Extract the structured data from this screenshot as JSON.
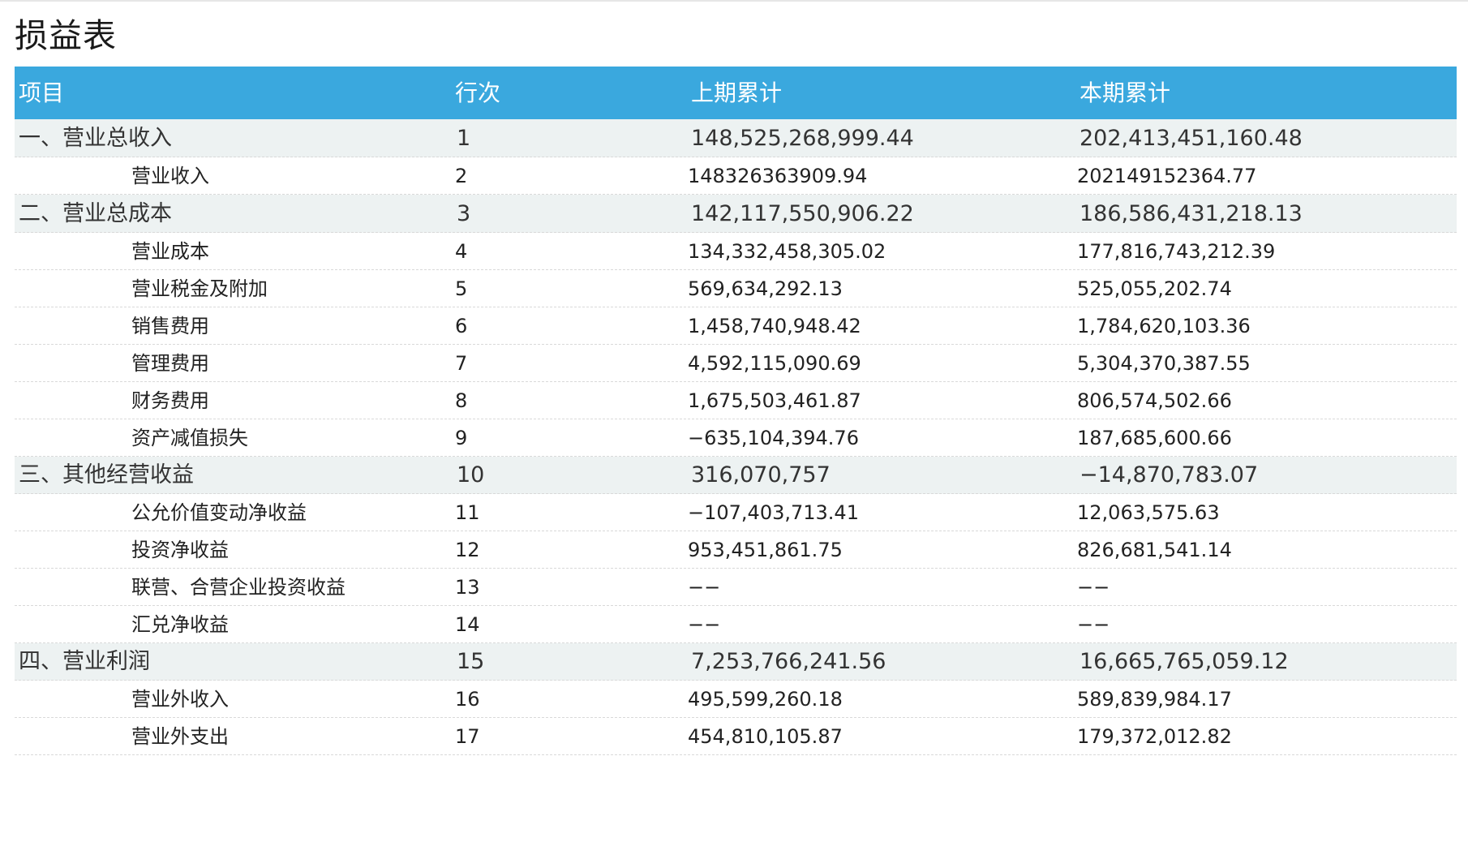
{
  "page": {
    "title": "损益表"
  },
  "table": {
    "headers": [
      "项目",
      "行次",
      "上期累计",
      "本期累计"
    ],
    "rows": [
      {
        "type": "group",
        "name": "一、营业总收入",
        "line": "1",
        "prev": "148,525,268,999.44",
        "curr": "202,413,451,160.48"
      },
      {
        "type": "item",
        "name": "营业收入",
        "line": "2",
        "prev": "148326363909.94",
        "curr": "202149152364.77"
      },
      {
        "type": "group",
        "name": "二、营业总成本",
        "line": "3",
        "prev": "142,117,550,906.22",
        "curr": "186,586,431,218.13"
      },
      {
        "type": "item",
        "name": "营业成本",
        "line": "4",
        "prev": "134,332,458,305.02",
        "curr": "177,816,743,212.39"
      },
      {
        "type": "item",
        "name": "营业税金及附加",
        "line": "5",
        "prev": "569,634,292.13",
        "curr": "525,055,202.74"
      },
      {
        "type": "item",
        "name": "销售费用",
        "line": "6",
        "prev": "1,458,740,948.42",
        "curr": "1,784,620,103.36"
      },
      {
        "type": "item",
        "name": "管理费用",
        "line": "7",
        "prev": "4,592,115,090.69",
        "curr": "5,304,370,387.55"
      },
      {
        "type": "item",
        "name": "财务费用",
        "line": "8",
        "prev": "1,675,503,461.87",
        "curr": "806,574,502.66"
      },
      {
        "type": "item",
        "name": "资产减值损失",
        "line": "9",
        "prev": "−635,104,394.76",
        "curr": "187,685,600.66"
      },
      {
        "type": "group",
        "name": "三、其他经营收益",
        "line": "10",
        "prev": "316,070,757",
        "curr": "−14,870,783.07"
      },
      {
        "type": "item",
        "name": "公允价值变动净收益",
        "line": "11",
        "prev": "−107,403,713.41",
        "curr": "12,063,575.63"
      },
      {
        "type": "item",
        "name": "投资净收益",
        "line": "12",
        "prev": "953,451,861.75",
        "curr": "826,681,541.14"
      },
      {
        "type": "item",
        "name": "联营、合营企业投资收益",
        "line": "13",
        "prev": "−−",
        "curr": "−−"
      },
      {
        "type": "item",
        "name": "汇兑净收益",
        "line": "14",
        "prev": "−−",
        "curr": "−−"
      },
      {
        "type": "group",
        "name": "四、营业利润",
        "line": "15",
        "prev": "7,253,766,241.56",
        "curr": "16,665,765,059.12"
      },
      {
        "type": "item",
        "name": "营业外收入",
        "line": "16",
        "prev": "495,599,260.18",
        "curr": "589,839,984.17"
      },
      {
        "type": "item",
        "name": "营业外支出",
        "line": "17",
        "prev": "454,810,105.87",
        "curr": "179,372,012.82"
      }
    ]
  },
  "colors": {
    "header_bg": "#3aa8de",
    "group_row_bg": "#edf2f2",
    "header_text": "#ffffff"
  }
}
